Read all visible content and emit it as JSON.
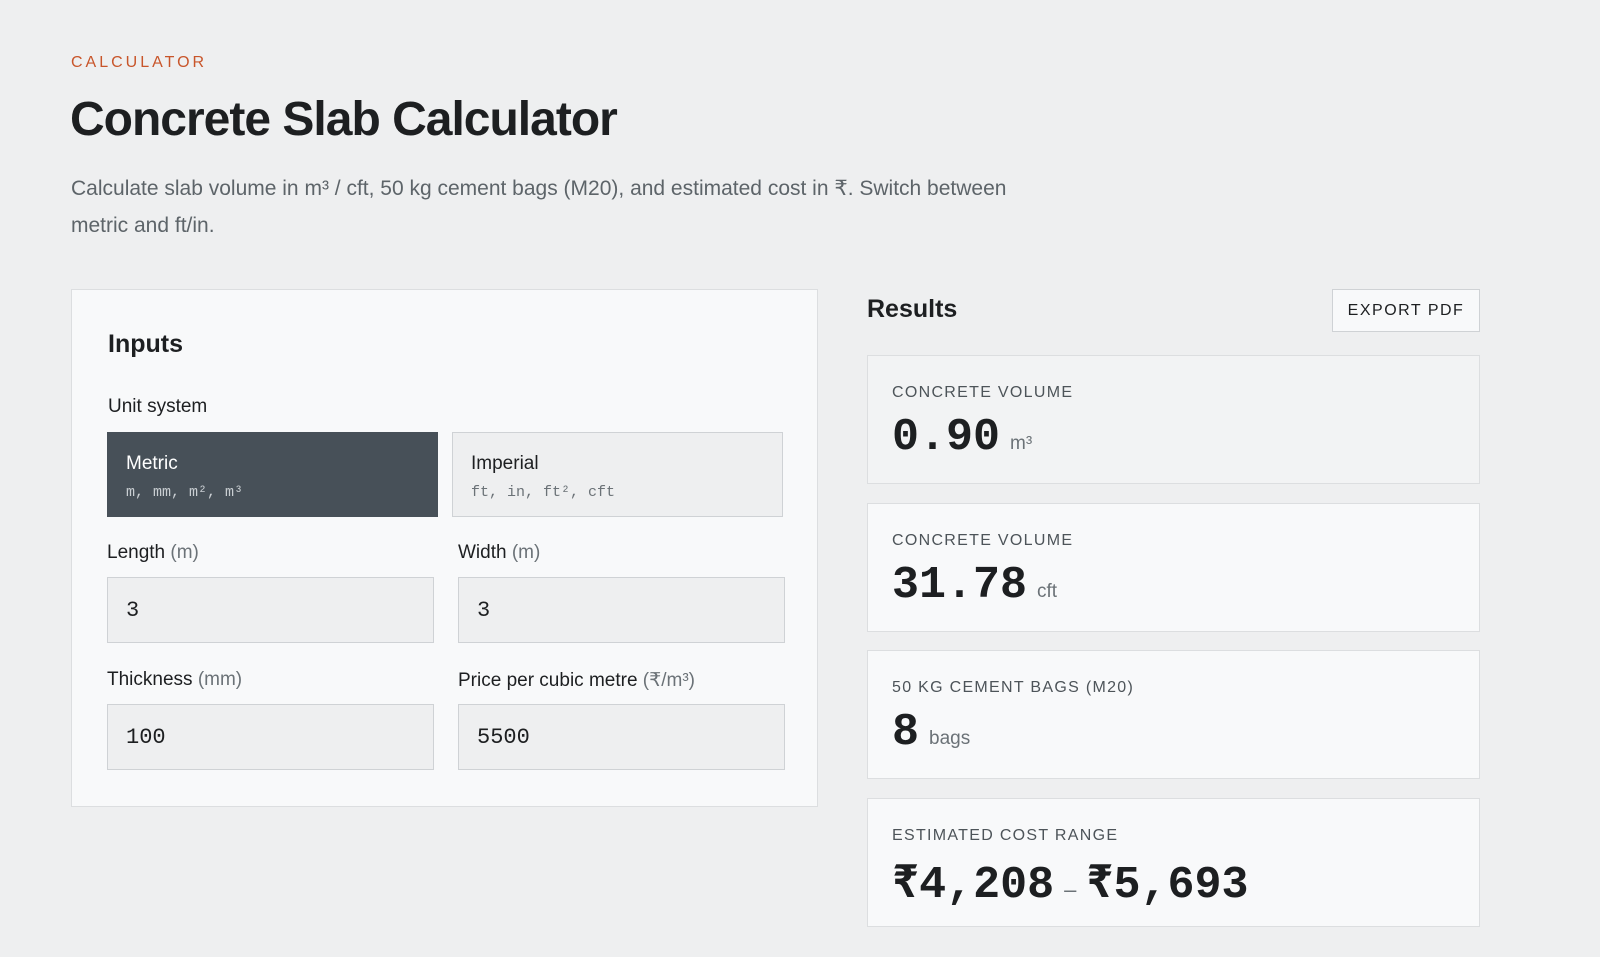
{
  "header": {
    "eyebrow": "CALCULATOR",
    "title": "Concrete Slab Calculator",
    "description": "Calculate slab volume in m³ / cft, 50 kg cement bags (M20), and estimated cost in ₹. Switch between metric and ft/in."
  },
  "inputs": {
    "title": "Inputs",
    "unit_system_label": "Unit system",
    "unit_options": [
      {
        "name": "Metric",
        "units": "m, mm, m², m³",
        "selected": true
      },
      {
        "name": "Imperial",
        "units": "ft, in, ft², cft",
        "selected": false
      }
    ],
    "fields": [
      {
        "label": "Length",
        "unit": "(m)",
        "value": "3"
      },
      {
        "label": "Width",
        "unit": "(m)",
        "value": "3"
      },
      {
        "label": "Thickness",
        "unit": "(mm)",
        "value": "100"
      },
      {
        "label": "Price per cubic metre",
        "unit": "(₹/m³)",
        "value": "5500"
      }
    ]
  },
  "results": {
    "title": "Results",
    "export_button": "EXPORT PDF",
    "cards": [
      {
        "label": "CONCRETE VOLUME",
        "value": "0.90",
        "unit": "m³"
      },
      {
        "label": "CONCRETE VOLUME",
        "value": "31.78",
        "unit": "cft"
      },
      {
        "label": "50 KG CEMENT BAGS (M20)",
        "value": "8",
        "unit": "bags"
      },
      {
        "label": "ESTIMATED COST RANGE",
        "value": "₹4,208",
        "separator": "–",
        "value_high": "₹5,693"
      }
    ]
  }
}
